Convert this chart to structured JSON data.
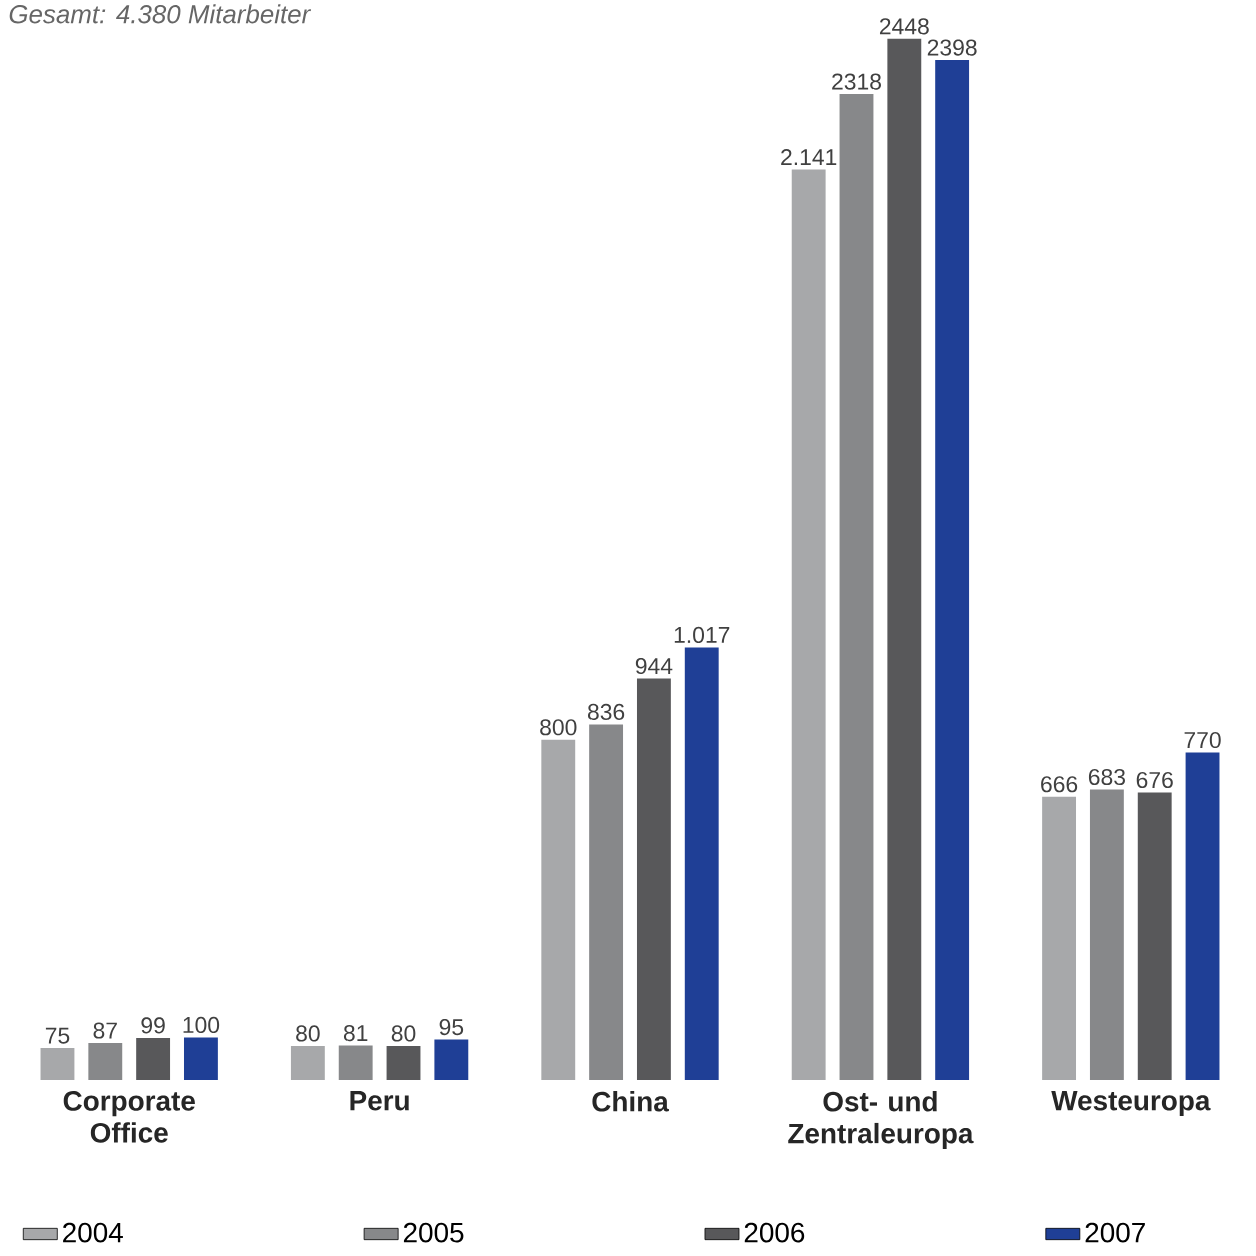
{
  "chart_data": {
    "type": "bar",
    "title": "Gesamt: 4.380 Mitarbeiter",
    "categories": [
      "Corporate Office",
      "Peru",
      "China",
      "Ost- und Zentraleuropa",
      "Westeuropa"
    ],
    "series": [
      {
        "name": "2004",
        "color": "#a7a8aa",
        "values": [
          75,
          80,
          800,
          2141,
          666
        ],
        "value_labels": [
          "75",
          "80",
          "800",
          "2.141",
          "666"
        ]
      },
      {
        "name": "2005",
        "color": "#87888a",
        "values": [
          87,
          81,
          836,
          2318,
          683
        ],
        "value_labels": [
          "87",
          "81",
          "836",
          "2318",
          "683"
        ]
      },
      {
        "name": "2006",
        "color": "#58585a",
        "values": [
          99,
          80,
          944,
          2448,
          676
        ],
        "value_labels": [
          "99",
          "80",
          "944",
          "2448",
          "676"
        ]
      },
      {
        "name": "2007",
        "color": "#1f3f96",
        "values": [
          100,
          95,
          1017,
          2398,
          770
        ],
        "value_labels": [
          "100",
          "95",
          "1.017",
          "2398",
          "770"
        ]
      }
    ],
    "tick_labels": "x",
    "legend": "bottom"
  }
}
